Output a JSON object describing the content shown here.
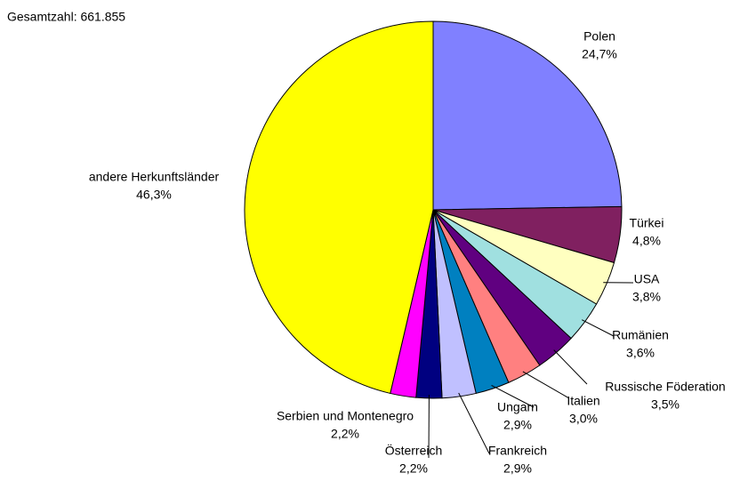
{
  "chart_data": {
    "type": "pie",
    "title": "Gesamtzahl: 661.855",
    "categories": [
      "Polen",
      "Türkei",
      "USA",
      "Rumänien",
      "Russische Föderation",
      "Italien",
      "Ungarn",
      "Frankreich",
      "Österreich",
      "Serbien und Montenegro",
      "andere Herkunftsländer"
    ],
    "values": [
      24.7,
      4.8,
      3.8,
      3.6,
      3.5,
      3.0,
      2.9,
      2.9,
      2.2,
      2.2,
      46.3
    ],
    "value_labels": [
      "24,7%",
      "4,8%",
      "3,8%",
      "3,6%",
      "3,5%",
      "3,0%",
      "2,9%",
      "2,9%",
      "2,2%",
      "2,2%",
      "46,3%"
    ],
    "colors": [
      "#8080ff",
      "#802060",
      "#ffffc0",
      "#a0e0e0",
      "#600080",
      "#ff8080",
      "#0080c0",
      "#c0c0ff",
      "#000080",
      "#ff00ff",
      "#ffff00"
    ]
  }
}
